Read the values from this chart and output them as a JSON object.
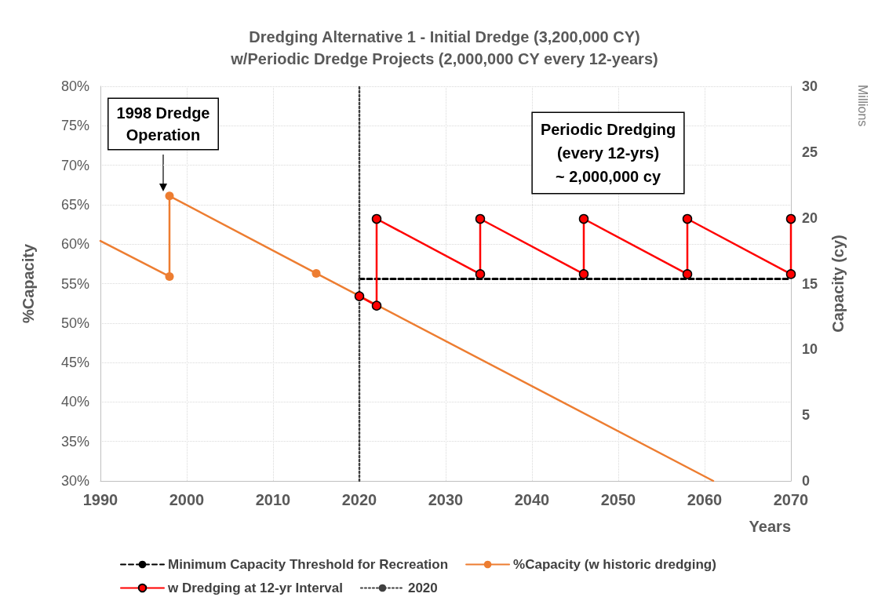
{
  "chart_data": {
    "type": "line",
    "title": "Dredging Alternative 1 - Initial Dredge (3,200,000 CY)\nw/Periodic Dredge Projects (2,000,000 CY every 12-years)",
    "xlabel": "Years",
    "ylabel": "%Capacity",
    "y2label": "Capacity (cy)",
    "xlim": [
      1990,
      2070
    ],
    "xticks": [
      1990,
      2000,
      2010,
      2020,
      2030,
      2040,
      2050,
      2060,
      2070
    ],
    "ylim": [
      30,
      80
    ],
    "yticks": [
      {
        "value": 30,
        "label": "30%"
      },
      {
        "value": 35,
        "label": "35%"
      },
      {
        "value": 40,
        "label": "40%"
      },
      {
        "value": 45,
        "label": "45%"
      },
      {
        "value": 50,
        "label": "50%"
      },
      {
        "value": 55,
        "label": "55%"
      },
      {
        "value": 60,
        "label": "60%"
      },
      {
        "value": 65,
        "label": "65%"
      },
      {
        "value": 70,
        "label": "70%"
      },
      {
        "value": 75,
        "label": "75%"
      },
      {
        "value": 80,
        "label": "80%"
      }
    ],
    "y2lim": [
      0,
      30
    ],
    "y2ticks": [
      0,
      5,
      10,
      15,
      20,
      25,
      30
    ],
    "grid": true,
    "legend": "bottom",
    "marker": "circle",
    "series": [
      {
        "name": "Minimum Capacity Threshold for Recreation",
        "color": "#000000",
        "x": [
          2020,
          2070
        ],
        "values": [
          55.6,
          55.6
        ],
        "line_style": "dashed",
        "marker": "none"
      },
      {
        "name": "%Capacity (w historic dredging)",
        "color": "#ed7d31",
        "x": [
          1990,
          1998,
          1998,
          2015,
          2061
        ],
        "values": [
          60.4,
          55.9,
          66.1,
          56.3,
          30
        ]
      },
      {
        "name": "w Dredging at 12-yr Interval",
        "color": "#ff0000",
        "x": [
          2020,
          2022,
          2022,
          2034,
          2034,
          2046,
          2046,
          2058,
          2058,
          2070,
          2070
        ],
        "values": [
          53.4,
          52.2,
          63.2,
          56.2,
          63.2,
          56.2,
          63.2,
          56.2,
          63.2,
          56.2,
          63.2
        ]
      },
      {
        "name": "2020",
        "color": "#404040",
        "x": [
          2020,
          2020
        ],
        "values": [
          30,
          80
        ],
        "line_style": "dotted",
        "marker": "none"
      }
    ],
    "annotations": [
      "1998 Dredge\nOperation",
      "Periodic Dredging\n(every 12-yrs)\n~ 2,000,000 cy",
      "Millions"
    ]
  }
}
